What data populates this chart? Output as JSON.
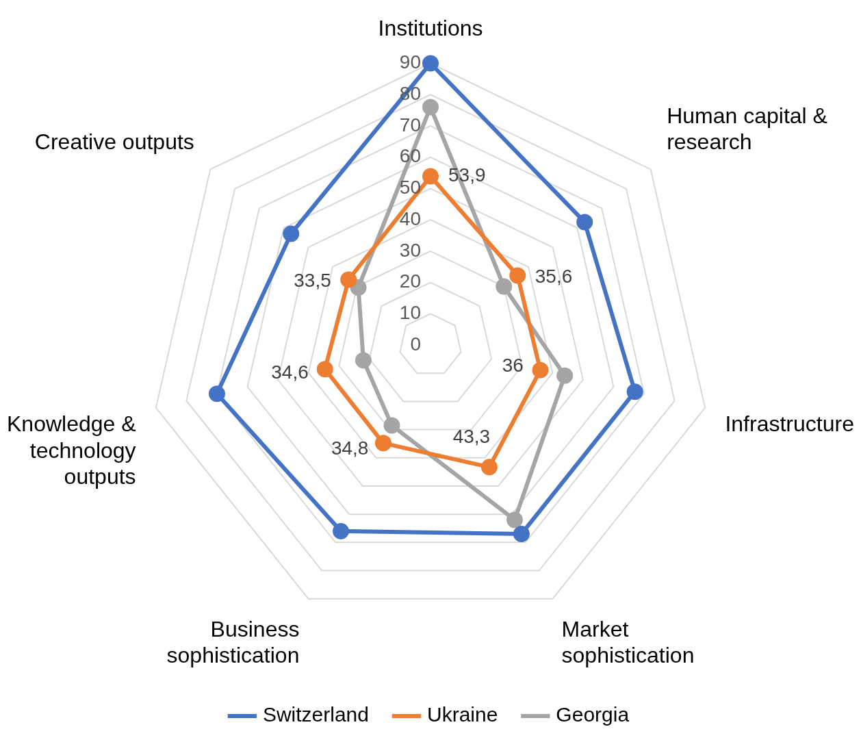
{
  "chart_data": {
    "type": "radar",
    "categories": [
      "Institutions",
      "Human capital & research",
      "Infrastructure",
      "Market sophistication",
      "Business sophistication",
      "Knowledge & technology outputs",
      "Creative outputs"
    ],
    "ylim": [
      0,
      90
    ],
    "yticks": [
      0,
      10,
      20,
      30,
      40,
      50,
      60,
      70,
      80,
      90
    ],
    "grid": true,
    "legend": "bottom",
    "marker": "circle",
    "series": [
      {
        "name": "Switzerland",
        "color": "#4472c4",
        "values": [
          90,
          63,
          67,
          67,
          66,
          70,
          57
        ]
      },
      {
        "name": "Ukraine",
        "color": "#ed7d31",
        "values": [
          53.9,
          35.6,
          36,
          43.3,
          34.8,
          34.6,
          33.5
        ],
        "value_labels": [
          "53,9",
          "35,6",
          "36",
          "43,3",
          "34,8",
          "34,6",
          "33,5"
        ]
      },
      {
        "name": "Georgia",
        "color": "#a5a5a5",
        "values": [
          76,
          30,
          44,
          62,
          28.5,
          22,
          29.5
        ]
      }
    ]
  }
}
